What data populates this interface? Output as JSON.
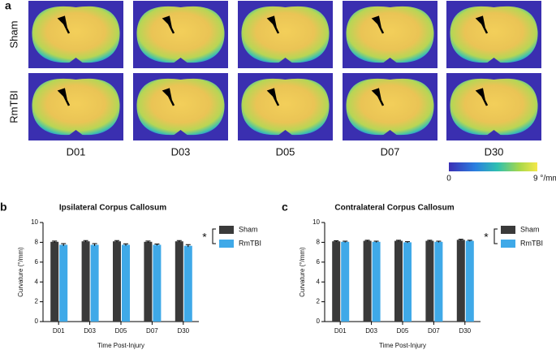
{
  "panel_a": {
    "label": "a",
    "rows": [
      "Sham",
      "RmTBI"
    ],
    "columns": [
      "D01",
      "D03",
      "D05",
      "D07",
      "D30"
    ],
    "colorbar": {
      "lim": [
        0,
        9
      ],
      "ticks": [
        0,
        {
          "value": 9,
          "label": "9 °/mm"
        }
      ]
    }
  },
  "chart_data": [
    {
      "type": "bar",
      "panel_label": "b",
      "title": "Ipsilateral Corpus Callosum",
      "x_label": "Time Post-Injury",
      "y_label": "Curvature (°/mm)",
      "categories": [
        "D01",
        "D03",
        "D05",
        "D07",
        "D30"
      ],
      "series": [
        {
          "name": "Sham",
          "color": "#3a3a3a",
          "values": [
            8.05,
            8.1,
            8.1,
            8.05,
            8.1
          ],
          "errors": [
            0.08,
            0.08,
            0.08,
            0.08,
            0.08
          ]
        },
        {
          "name": "RmTBI",
          "color": "#3fa9e8",
          "values": [
            7.75,
            7.75,
            7.75,
            7.75,
            7.65
          ],
          "errors": [
            0.12,
            0.12,
            0.1,
            0.08,
            0.12
          ]
        }
      ],
      "ylim": [
        0,
        10
      ],
      "yticks": [
        0,
        2,
        4,
        6,
        8,
        10
      ],
      "significance": "*"
    },
    {
      "type": "bar",
      "panel_label": "c",
      "title": "Contralateral Corpus Callosum",
      "x_label": "Time Post-Injury",
      "y_label": "Curvature (°/mm)",
      "categories": [
        "D01",
        "D03",
        "D05",
        "D07",
        "D30"
      ],
      "series": [
        {
          "name": "Sham",
          "color": "#3a3a3a",
          "values": [
            8.1,
            8.15,
            8.15,
            8.15,
            8.25
          ],
          "errors": [
            0.06,
            0.06,
            0.06,
            0.06,
            0.06
          ]
        },
        {
          "name": "RmTBI",
          "color": "#3fa9e8",
          "values": [
            8.05,
            8.05,
            8.0,
            8.05,
            8.15
          ],
          "errors": [
            0.06,
            0.06,
            0.06,
            0.06,
            0.06
          ]
        }
      ],
      "ylim": [
        0,
        10
      ],
      "yticks": [
        0,
        2,
        4,
        6,
        8,
        10
      ],
      "significance": "*"
    }
  ]
}
